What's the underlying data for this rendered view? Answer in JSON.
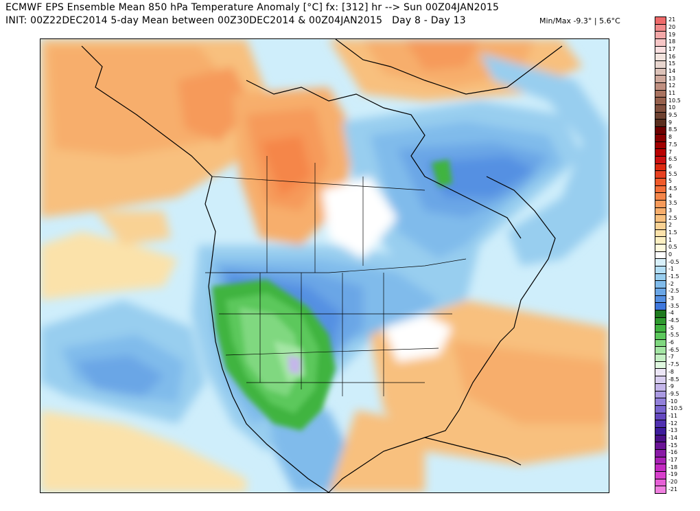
{
  "header": {
    "line1": "ECMWF EPS Ensemble Mean 850 hPa Temperature Anomaly [°C] fx: [312] hr --> Sun 00Z04JAN2015",
    "line2": "INIT: 00Z22DEC2014 5-day Mean between 00Z30DEC2014 & 00Z04JAN2015   Day 8 - Day 13",
    "minmax": "Min/Max -9.3° | 5.6°C"
  },
  "map": {
    "region": "North America",
    "variable": "850 hPa Temperature Anomaly",
    "units": "°C"
  },
  "colorbar": {
    "labels": [
      "21",
      "20",
      "19",
      "18",
      "17",
      "16",
      "15",
      "14",
      "13",
      "12",
      "11",
      "10.5",
      "10",
      "9.5",
      "9",
      "8.5",
      "8",
      "7.5",
      "7",
      "6.5",
      "6",
      "5.5",
      "5",
      "4.5",
      "4",
      "3.5",
      "3",
      "2.5",
      "2",
      "1.5",
      "1",
      "0.5",
      "0",
      "-0.5",
      "-1",
      "-1.5",
      "-2",
      "-2.5",
      "-3",
      "-3.5",
      "-4",
      "-4.5",
      "-5",
      "-5.5",
      "-6",
      "-6.5",
      "-7",
      "-7.5",
      "-8",
      "-8.5",
      "-9",
      "-9.5",
      "-10",
      "-10.5",
      "-11",
      "-12",
      "-13",
      "-14",
      "-15",
      "-16",
      "-17",
      "-18",
      "-19",
      "-20",
      "-21"
    ],
    "colors": [
      "#ee6a6a",
      "#f08a8a",
      "#f3a8a8",
      "#f7c6c6",
      "#fbe0e0",
      "#f2e4de",
      "#e8d6cf",
      "#dcc2b8",
      "#cfa99c",
      "#bf8f80",
      "#a97360",
      "#96604c",
      "#82503e",
      "#6e4231",
      "#5a2e1e",
      "#6e0000",
      "#870000",
      "#a00000",
      "#b80000",
      "#cc1010",
      "#dd2a10",
      "#e84020",
      "#f05a2a",
      "#f4703a",
      "#f5864a",
      "#f69a5a",
      "#f7ae6c",
      "#f8c07e",
      "#f9d294",
      "#fbe2aa",
      "#fdf0c2",
      "#fefade",
      "#ffffff",
      "#d8f0fa",
      "#b4dff6",
      "#98ceef",
      "#80bbeb",
      "#6aa6e6",
      "#5590e2",
      "#3f78dd",
      "#1f7a1f",
      "#2e9a2e",
      "#40b440",
      "#5cc85c",
      "#80d880",
      "#a4e6a4",
      "#c4f0c4",
      "#e0f8e0",
      "#ece6f6",
      "#d8cef0",
      "#c4b6ea",
      "#aa9ae2",
      "#9280da",
      "#7a66d0",
      "#6448c0",
      "#5030b0",
      "#3e1c9c",
      "#4a1088",
      "#6a1496",
      "#8a1aa6",
      "#a820b4",
      "#c42ac2",
      "#d840cc",
      "#e660d6",
      "#f080e0"
    ]
  }
}
